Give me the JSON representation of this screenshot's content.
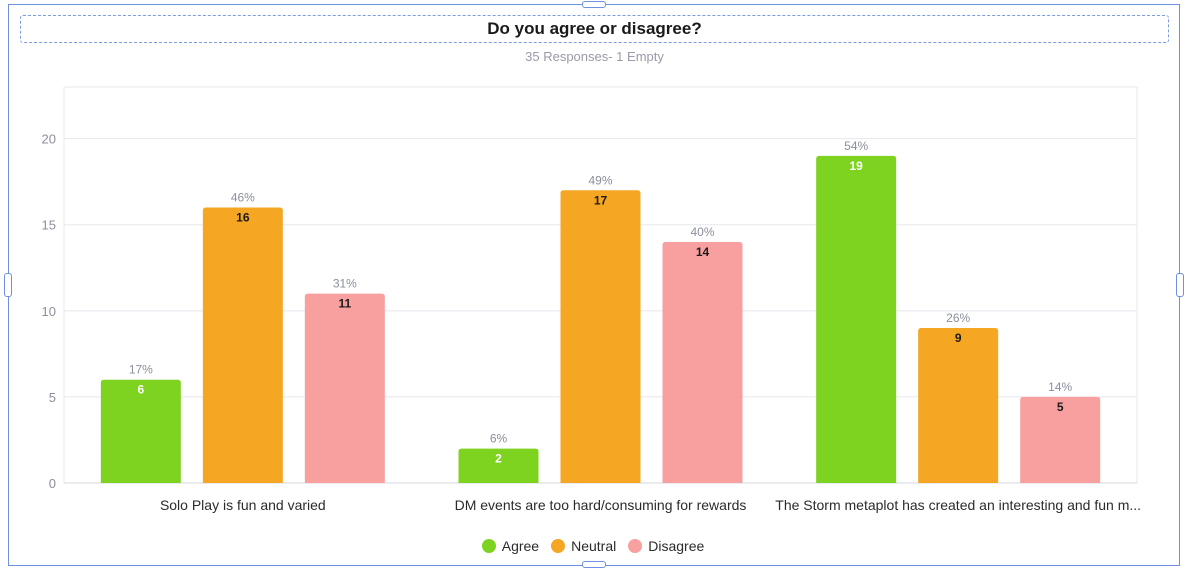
{
  "header": {
    "title": "Do you agree or disagree?",
    "subtitle": "35 Responses- 1 Empty"
  },
  "chart_data": {
    "type": "bar",
    "title": "Do you agree or disagree?",
    "subtitle": "35 Responses- 1 Empty",
    "categories": [
      "Solo Play is fun and varied",
      "DM events are too hard/consuming for rewards",
      "The Storm metaplot has created an interesting and fun m..."
    ],
    "series": [
      {
        "name": "Agree",
        "color": "#7ed321",
        "values": [
          6,
          2,
          19
        ],
        "percents": [
          "17%",
          "6%",
          "54%"
        ],
        "value_text_color": "#ffffff"
      },
      {
        "name": "Neutral",
        "color": "#f5a623",
        "values": [
          16,
          17,
          9
        ],
        "percents": [
          "46%",
          "49%",
          "26%"
        ],
        "value_text_color": "#1a1a1a"
      },
      {
        "name": "Disagree",
        "color": "#f8a0a0",
        "values": [
          11,
          14,
          5
        ],
        "percents": [
          "31%",
          "40%",
          "14%"
        ],
        "value_text_color": "#1a1a1a"
      }
    ],
    "yticks": [
      0,
      5,
      10,
      15,
      20
    ],
    "ylim": [
      0,
      23
    ],
    "xlabel": "",
    "ylabel": "",
    "grid": true,
    "legend_position": "bottom-center"
  }
}
